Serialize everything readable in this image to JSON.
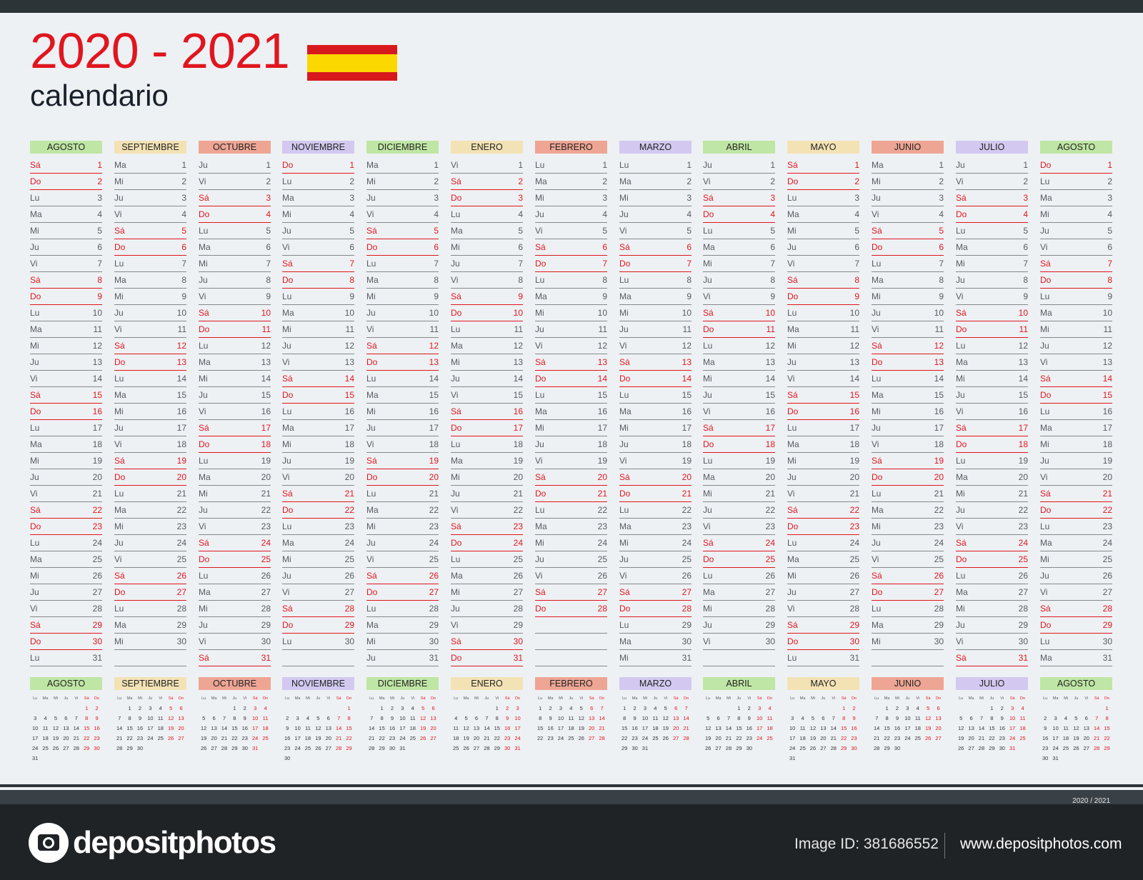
{
  "header": {
    "title": "2020 - 2021",
    "subtitle": "calendario"
  },
  "colors": {
    "accent": "#e0161e",
    "flag_red": "#d7191e",
    "flag_yellow": "#fbd800"
  },
  "mini_day_headers": [
    "Lu",
    "Ma",
    "Mi",
    "Ju",
    "Vi",
    "Sá",
    "Do"
  ],
  "months": [
    {
      "name": "AGOSTO",
      "color": "#bfe6a4",
      "start": 5,
      "len": 31
    },
    {
      "name": "SEPTIEMBRE",
      "color": "#f3e2b4",
      "start": 1,
      "len": 30
    },
    {
      "name": "OCTUBRE",
      "color": "#eea594",
      "start": 3,
      "len": 31
    },
    {
      "name": "NOVIEMBRE",
      "color": "#d3c9f0",
      "start": 6,
      "len": 30
    },
    {
      "name": "DICIEMBRE",
      "color": "#bfe6a4",
      "start": 1,
      "len": 31
    },
    {
      "name": "ENERO",
      "color": "#f3e2b4",
      "start": 4,
      "len": 31
    },
    {
      "name": "FEBRERO",
      "color": "#eea594",
      "start": 0,
      "len": 28
    },
    {
      "name": "MARZO",
      "color": "#d3c9f0",
      "start": 0,
      "len": 31
    },
    {
      "name": "ABRIL",
      "color": "#bfe6a4",
      "start": 3,
      "len": 30
    },
    {
      "name": "MAYO",
      "color": "#f3e2b4",
      "start": 5,
      "len": 31
    },
    {
      "name": "JUNIO",
      "color": "#eea594",
      "start": 1,
      "len": 30
    },
    {
      "name": "JULIO",
      "color": "#d3c9f0",
      "start": 3,
      "len": 31
    },
    {
      "name": "AGOSTO",
      "color": "#bfe6a4",
      "start": 6,
      "len": 31
    }
  ],
  "footer": {
    "code": "2020 / 2021",
    "brand": "depositphotos",
    "image_id": "Image ID: 381686552",
    "site": "www.depositphotos.com"
  }
}
